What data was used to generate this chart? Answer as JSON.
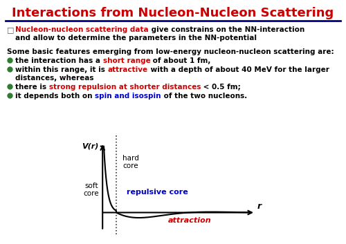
{
  "title": "Interactions from Nucleon-Nucleon Scattering",
  "title_color": "#cc0000",
  "title_fontsize": 13,
  "bg_color": "#ffffff",
  "navy_color": "#000080",
  "bullet_color": "#2e7d32",
  "red_color": "#cc0000",
  "blue_color": "#0000cc",
  "black_color": "#000000",
  "graph_ylabel": "V(r)",
  "graph_xlabel": "r",
  "label_hard_core": "hard\ncore",
  "label_soft_core": "soft\ncore",
  "label_repulsive": "repulsive core",
  "label_attraction": "attraction",
  "repulsive_color": "#0000cc",
  "attraction_color": "#cc0000",
  "text_fontsize": 7.5,
  "bold_fontsize": 7.5
}
